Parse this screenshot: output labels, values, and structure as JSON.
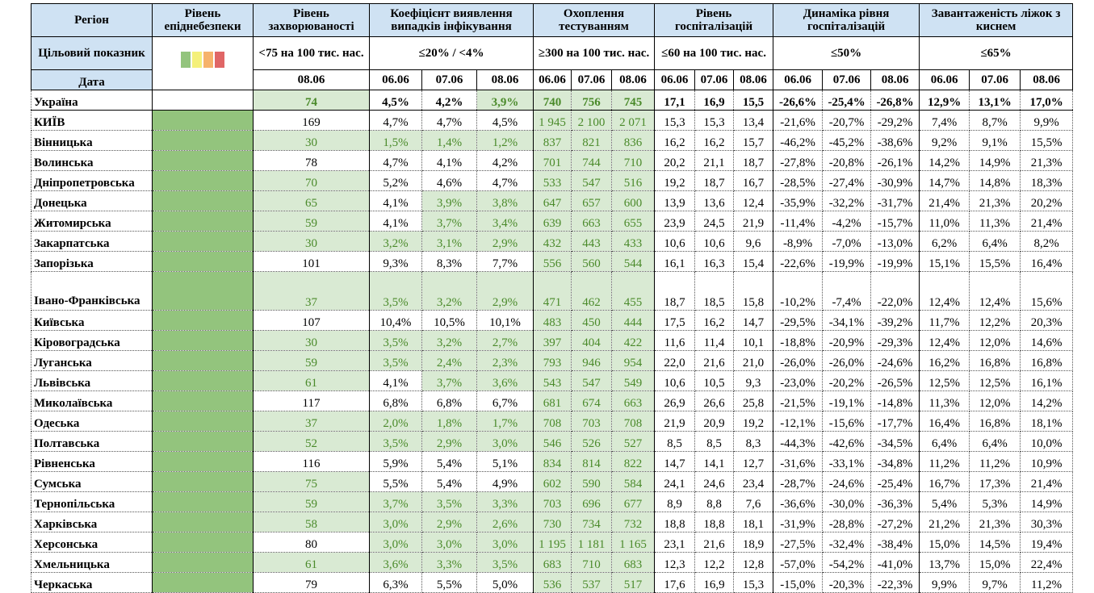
{
  "header": {
    "region": "Регіон",
    "level": "Рівень епіднебезпеки",
    "incidence": "Рівень захворюваності",
    "positivity": "Коефіцієнт виявлення випадків інфікування",
    "testing": "Охоплення тестуванням",
    "hospitalization": "Рівень госпіталізацій",
    "hosp_dynamics": "Динаміка рівня госпіталізацій",
    "oxygen_beds": "Завантаженість ліжок з киснем"
  },
  "targets": {
    "label": "Цільовий показник",
    "incidence": "<75 на 100 тис. нас.",
    "positivity": "≤20% / <4%",
    "testing": "≥300 на 100 тис. нас.",
    "hospitalization": "≤60 на 100 тис. нас.",
    "hosp_dynamics": "≤50%",
    "oxygen_beds": "≤65%"
  },
  "level_legend_colors": [
    "#93c47d",
    "#f4f07a",
    "#f6b26b",
    "#e06666"
  ],
  "dates": {
    "label": "Дата",
    "incidence": "08.06",
    "triple": [
      "06.06",
      "07.06",
      "08.06"
    ]
  },
  "colors": {
    "header_bg": "#cfe2f3",
    "green_level": "#93c47d",
    "green_highlight_bg": "#d9ead3",
    "green_highlight_text": "#4a8a2a"
  },
  "rows": [
    {
      "region": "Україна",
      "level": "",
      "inc": "74",
      "pos": [
        "4,5%",
        "4,2%",
        "3,9%"
      ],
      "test": [
        "740",
        "756",
        "745"
      ],
      "hosp": [
        "17,1",
        "16,9",
        "15,5"
      ],
      "dyn": [
        "-26,6%",
        "-25,4%",
        "-26,8%"
      ],
      "beds": [
        "12,9%",
        "13,1%",
        "17,0%"
      ]
    },
    {
      "region": "КИЇВ",
      "level": "green",
      "inc": "169",
      "pos": [
        "4,7%",
        "4,7%",
        "4,5%"
      ],
      "test": [
        "1 945",
        "2 100",
        "2 071"
      ],
      "hosp": [
        "15,3",
        "15,3",
        "13,4"
      ],
      "dyn": [
        "-21,6%",
        "-20,7%",
        "-29,2%"
      ],
      "beds": [
        "7,4%",
        "8,7%",
        "9,9%"
      ]
    },
    {
      "region": "Вінницька",
      "level": "green",
      "inc": "30",
      "pos": [
        "1,5%",
        "1,4%",
        "1,2%"
      ],
      "test": [
        "837",
        "821",
        "836"
      ],
      "hosp": [
        "16,2",
        "16,2",
        "15,7"
      ],
      "dyn": [
        "-46,2%",
        "-45,2%",
        "-38,6%"
      ],
      "beds": [
        "9,2%",
        "9,1%",
        "15,5%"
      ]
    },
    {
      "region": "Волинська",
      "level": "green",
      "inc": "78",
      "pos": [
        "4,7%",
        "4,1%",
        "4,2%"
      ],
      "test": [
        "701",
        "744",
        "710"
      ],
      "hosp": [
        "20,2",
        "21,1",
        "18,7"
      ],
      "dyn": [
        "-27,8%",
        "-20,8%",
        "-26,1%"
      ],
      "beds": [
        "14,2%",
        "14,9%",
        "21,3%"
      ]
    },
    {
      "region": "Дніпропетровська",
      "level": "green",
      "inc": "70",
      "pos": [
        "5,2%",
        "4,6%",
        "4,7%"
      ],
      "test": [
        "533",
        "547",
        "516"
      ],
      "hosp": [
        "19,2",
        "18,7",
        "16,7"
      ],
      "dyn": [
        "-28,5%",
        "-27,4%",
        "-30,9%"
      ],
      "beds": [
        "14,7%",
        "14,8%",
        "18,3%"
      ]
    },
    {
      "region": "Донецька",
      "level": "green",
      "inc": "65",
      "pos": [
        "4,1%",
        "3,9%",
        "3,8%"
      ],
      "test": [
        "647",
        "657",
        "600"
      ],
      "hosp": [
        "13,9",
        "13,6",
        "12,4"
      ],
      "dyn": [
        "-35,9%",
        "-32,2%",
        "-31,7%"
      ],
      "beds": [
        "21,4%",
        "21,3%",
        "20,2%"
      ]
    },
    {
      "region": "Житомирська",
      "level": "green",
      "inc": "59",
      "pos": [
        "4,1%",
        "3,7%",
        "3,4%"
      ],
      "test": [
        "639",
        "663",
        "655"
      ],
      "hosp": [
        "23,9",
        "24,5",
        "21,9"
      ],
      "dyn": [
        "-11,4%",
        "-4,2%",
        "-15,7%"
      ],
      "beds": [
        "11,0%",
        "11,3%",
        "21,4%"
      ]
    },
    {
      "region": "Закарпатська",
      "level": "green",
      "inc": "30",
      "pos": [
        "3,2%",
        "3,1%",
        "2,9%"
      ],
      "test": [
        "432",
        "443",
        "433"
      ],
      "hosp": [
        "10,6",
        "10,6",
        "9,6"
      ],
      "dyn": [
        "-8,9%",
        "-7,0%",
        "-13,0%"
      ],
      "beds": [
        "6,2%",
        "6,4%",
        "8,2%"
      ]
    },
    {
      "region": "Запорізька",
      "level": "green",
      "inc": "101",
      "pos": [
        "9,3%",
        "8,3%",
        "7,7%"
      ],
      "test": [
        "556",
        "560",
        "544"
      ],
      "hosp": [
        "16,1",
        "16,3",
        "15,4"
      ],
      "dyn": [
        "-22,6%",
        "-19,9%",
        "-19,9%"
      ],
      "beds": [
        "15,1%",
        "15,5%",
        "16,4%"
      ]
    },
    {
      "region": "Івано-Франківська",
      "level": "green",
      "inc": "37",
      "pos": [
        "3,5%",
        "3,2%",
        "2,9%"
      ],
      "test": [
        "471",
        "462",
        "455"
      ],
      "hosp": [
        "18,7",
        "18,5",
        "15,8"
      ],
      "dyn": [
        "-10,2%",
        "-7,4%",
        "-22,0%"
      ],
      "beds": [
        "12,4%",
        "12,4%",
        "15,6%"
      ]
    },
    {
      "region": "Київська",
      "level": "green",
      "inc": "107",
      "pos": [
        "10,4%",
        "10,5%",
        "10,1%"
      ],
      "test": [
        "483",
        "450",
        "444"
      ],
      "hosp": [
        "17,5",
        "16,2",
        "14,7"
      ],
      "dyn": [
        "-29,5%",
        "-34,1%",
        "-39,2%"
      ],
      "beds": [
        "11,7%",
        "12,2%",
        "20,3%"
      ]
    },
    {
      "region": "Кіровоградська",
      "level": "green",
      "inc": "30",
      "pos": [
        "3,5%",
        "3,2%",
        "2,7%"
      ],
      "test": [
        "397",
        "404",
        "422"
      ],
      "hosp": [
        "11,6",
        "11,4",
        "10,1"
      ],
      "dyn": [
        "-18,8%",
        "-20,9%",
        "-29,3%"
      ],
      "beds": [
        "12,4%",
        "12,0%",
        "14,6%"
      ]
    },
    {
      "region": "Луганська",
      "level": "green",
      "inc": "59",
      "pos": [
        "3,5%",
        "2,4%",
        "2,3%"
      ],
      "test": [
        "793",
        "946",
        "954"
      ],
      "hosp": [
        "22,0",
        "21,6",
        "21,0"
      ],
      "dyn": [
        "-26,0%",
        "-26,0%",
        "-24,6%"
      ],
      "beds": [
        "16,2%",
        "16,8%",
        "16,8%"
      ]
    },
    {
      "region": "Львівська",
      "level": "green",
      "inc": "61",
      "pos": [
        "4,1%",
        "3,7%",
        "3,6%"
      ],
      "test": [
        "543",
        "547",
        "549"
      ],
      "hosp": [
        "10,6",
        "10,5",
        "9,3"
      ],
      "dyn": [
        "-23,0%",
        "-20,2%",
        "-26,5%"
      ],
      "beds": [
        "12,5%",
        "12,5%",
        "16,1%"
      ]
    },
    {
      "region": "Миколаївська",
      "level": "green",
      "inc": "117",
      "pos": [
        "6,8%",
        "6,8%",
        "6,7%"
      ],
      "test": [
        "681",
        "674",
        "663"
      ],
      "hosp": [
        "26,9",
        "26,6",
        "25,8"
      ],
      "dyn": [
        "-21,5%",
        "-19,1%",
        "-14,8%"
      ],
      "beds": [
        "11,3%",
        "12,0%",
        "14,2%"
      ]
    },
    {
      "region": "Одеська",
      "level": "green",
      "inc": "37",
      "pos": [
        "2,0%",
        "1,8%",
        "1,7%"
      ],
      "test": [
        "708",
        "703",
        "708"
      ],
      "hosp": [
        "21,9",
        "20,9",
        "19,2"
      ],
      "dyn": [
        "-12,1%",
        "-15,6%",
        "-17,7%"
      ],
      "beds": [
        "16,4%",
        "16,8%",
        "18,1%"
      ]
    },
    {
      "region": "Полтавська",
      "level": "green",
      "inc": "52",
      "pos": [
        "3,5%",
        "2,9%",
        "3,0%"
      ],
      "test": [
        "546",
        "526",
        "527"
      ],
      "hosp": [
        "8,5",
        "8,5",
        "8,3"
      ],
      "dyn": [
        "-44,3%",
        "-42,6%",
        "-34,5%"
      ],
      "beds": [
        "6,4%",
        "6,4%",
        "10,0%"
      ]
    },
    {
      "region": "Рівненська",
      "level": "green",
      "inc": "116",
      "pos": [
        "5,9%",
        "5,4%",
        "5,1%"
      ],
      "test": [
        "834",
        "814",
        "822"
      ],
      "hosp": [
        "14,7",
        "14,1",
        "12,7"
      ],
      "dyn": [
        "-31,6%",
        "-33,1%",
        "-34,8%"
      ],
      "beds": [
        "11,2%",
        "11,2%",
        "10,9%"
      ]
    },
    {
      "region": "Сумська",
      "level": "green",
      "inc": "75",
      "pos": [
        "5,5%",
        "5,4%",
        "4,9%"
      ],
      "test": [
        "602",
        "590",
        "584"
      ],
      "hosp": [
        "24,1",
        "24,6",
        "23,4"
      ],
      "dyn": [
        "-28,7%",
        "-24,6%",
        "-25,4%"
      ],
      "beds": [
        "16,7%",
        "17,3%",
        "21,4%"
      ]
    },
    {
      "region": "Тернопільська",
      "level": "green",
      "inc": "59",
      "pos": [
        "3,7%",
        "3,5%",
        "3,3%"
      ],
      "test": [
        "703",
        "696",
        "677"
      ],
      "hosp": [
        "8,9",
        "8,8",
        "7,6"
      ],
      "dyn": [
        "-36,6%",
        "-30,0%",
        "-36,3%"
      ],
      "beds": [
        "5,4%",
        "5,3%",
        "14,9%"
      ]
    },
    {
      "region": "Харківська",
      "level": "green",
      "inc": "58",
      "pos": [
        "3,0%",
        "2,9%",
        "2,6%"
      ],
      "test": [
        "730",
        "734",
        "732"
      ],
      "hosp": [
        "18,8",
        "18,8",
        "18,1"
      ],
      "dyn": [
        "-31,9%",
        "-28,8%",
        "-27,2%"
      ],
      "beds": [
        "21,2%",
        "21,3%",
        "30,3%"
      ]
    },
    {
      "region": "Херсонська",
      "level": "green",
      "inc": "80",
      "pos": [
        "3,0%",
        "3,0%",
        "3,0%"
      ],
      "test": [
        "1 195",
        "1 181",
        "1 165"
      ],
      "hosp": [
        "23,1",
        "21,6",
        "18,9"
      ],
      "dyn": [
        "-27,5%",
        "-32,4%",
        "-38,4%"
      ],
      "beds": [
        "15,0%",
        "14,5%",
        "19,4%"
      ]
    },
    {
      "region": "Хмельницька",
      "level": "green",
      "inc": "61",
      "pos": [
        "3,6%",
        "3,3%",
        "3,5%"
      ],
      "test": [
        "683",
        "710",
        "683"
      ],
      "hosp": [
        "12,3",
        "12,2",
        "12,8"
      ],
      "dyn": [
        "-57,0%",
        "-54,2%",
        "-41,0%"
      ],
      "beds": [
        "13,7%",
        "15,0%",
        "22,4%"
      ]
    },
    {
      "region": "Черкаська",
      "level": "green",
      "inc": "79",
      "pos": [
        "6,3%",
        "5,5%",
        "5,0%"
      ],
      "test": [
        "536",
        "537",
        "517"
      ],
      "hosp": [
        "17,6",
        "16,9",
        "15,3"
      ],
      "dyn": [
        "-15,0%",
        "-20,3%",
        "-22,3%"
      ],
      "beds": [
        "9,9%",
        "9,7%",
        "11,2%"
      ]
    }
  ]
}
